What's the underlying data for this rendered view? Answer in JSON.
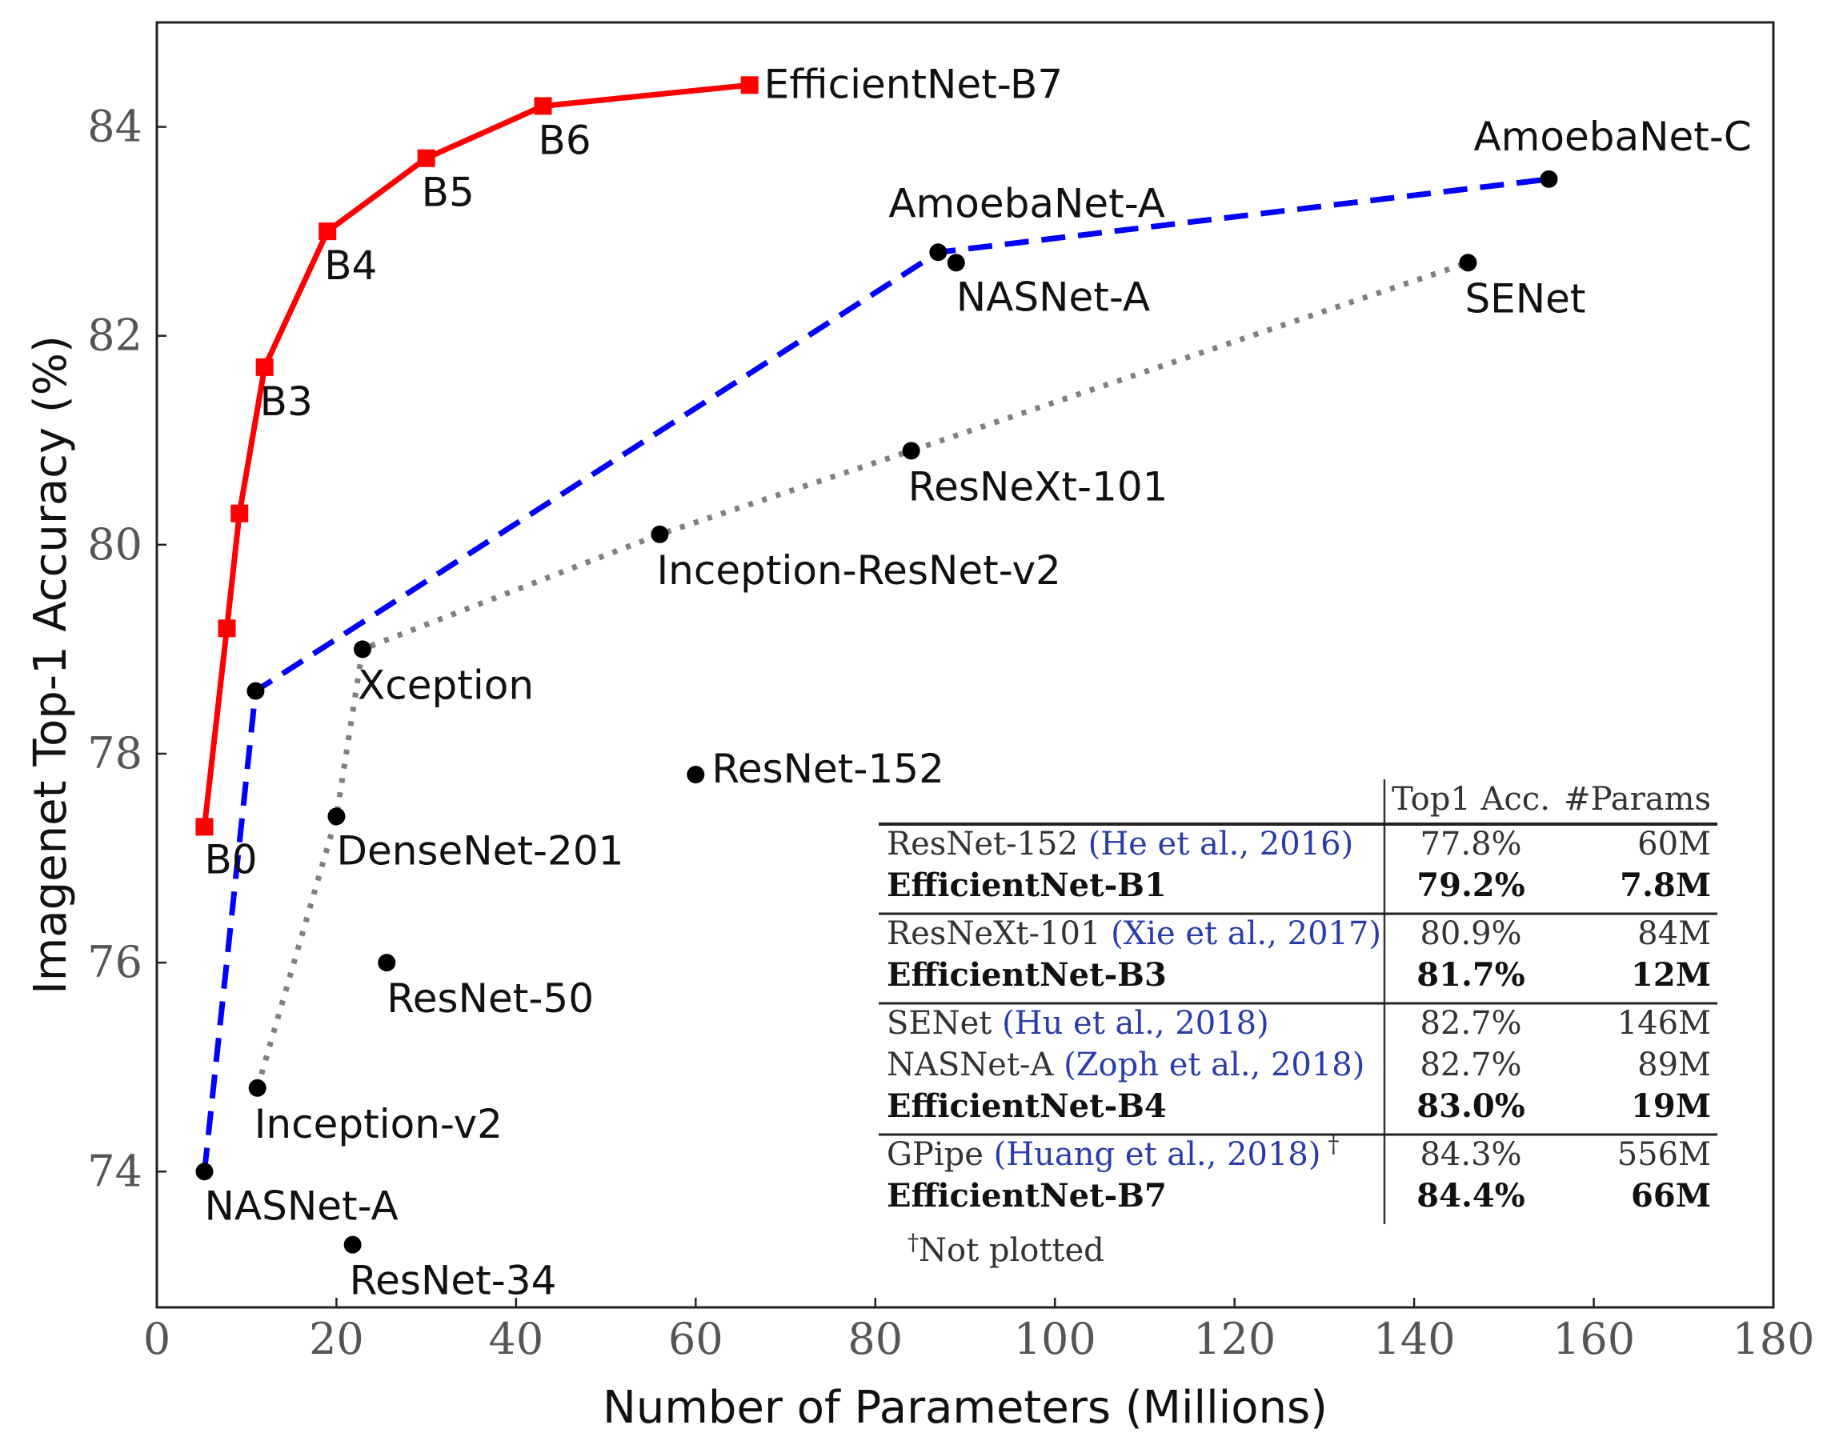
{
  "chart_data": {
    "type": "scatter",
    "xlabel": "Number of Parameters (Millions)",
    "ylabel": "Imagenet Top-1 Accuracy (%)",
    "xlim": [
      0,
      180
    ],
    "ylim": [
      72.7,
      85.0
    ],
    "xticks": [
      0,
      20,
      40,
      60,
      80,
      100,
      120,
      140,
      160,
      180
    ],
    "yticks": [
      74,
      76,
      78,
      80,
      82,
      84
    ],
    "grid": false,
    "series": [
      {
        "style": "solid-red-squares",
        "color": "#ff0000",
        "points": [
          {
            "x": 5.3,
            "y": 77.3,
            "label": "B0"
          },
          {
            "x": 7.8,
            "y": 79.2,
            "label": ""
          },
          {
            "x": 9.2,
            "y": 80.3,
            "label": ""
          },
          {
            "x": 12,
            "y": 81.7,
            "label": "B3"
          },
          {
            "x": 19,
            "y": 83.0,
            "label": "B4"
          },
          {
            "x": 30,
            "y": 83.7,
            "label": "B5"
          },
          {
            "x": 43,
            "y": 84.2,
            "label": "B6"
          },
          {
            "x": 66,
            "y": 84.4,
            "label": "EfficientNet-B7"
          }
        ]
      },
      {
        "style": "dashed-blue-dots",
        "color": "#0000ff",
        "points": [
          {
            "x": 5.3,
            "y": 74.0,
            "label": "NASNet-A"
          },
          {
            "x": 11,
            "y": 78.6,
            "label": ""
          },
          {
            "x": 87,
            "y": 82.8,
            "label": "AmoebaNet-A"
          },
          {
            "x": 155,
            "y": 83.5,
            "label": "AmoebaNet-C"
          }
        ]
      },
      {
        "style": "dotted-gray-dots",
        "color": "#808080",
        "points": [
          {
            "x": 11.2,
            "y": 74.8,
            "label": "Inception-v2"
          },
          {
            "x": 20,
            "y": 77.4,
            "label": "DenseNet-201"
          },
          {
            "x": 22.9,
            "y": 79.0,
            "label": "Xception"
          },
          {
            "x": 56,
            "y": 80.1,
            "label": "Inception-ResNet-v2"
          },
          {
            "x": 84,
            "y": 80.9,
            "label": "ResNeXt-101"
          },
          {
            "x": 146,
            "y": 82.7,
            "label": "SENet"
          }
        ]
      },
      {
        "style": "isolated-black-dots",
        "color": "#000000",
        "points": [
          {
            "x": 89,
            "y": 82.7,
            "label": "NASNet-A"
          },
          {
            "x": 60,
            "y": 77.8,
            "label": "ResNet-152"
          },
          {
            "x": 25.6,
            "y": 76.0,
            "label": "ResNet-50"
          },
          {
            "x": 21.8,
            "y": 73.3,
            "label": "ResNet-34"
          }
        ]
      }
    ],
    "inset_table": {
      "header": {
        "acc": "Top1 Acc.",
        "params": "#Params"
      },
      "groups": [
        [
          {
            "model": "ResNet-152",
            "cite": "(He et al., 2016)",
            "acc": "77.8%",
            "params": "60M",
            "bold": false
          },
          {
            "model": "EfficientNet-B1",
            "cite": "",
            "acc": "79.2%",
            "params": "7.8M",
            "bold": true
          }
        ],
        [
          {
            "model": "ResNeXt-101",
            "cite": "(Xie et al., 2017)",
            "acc": "80.9%",
            "params": "84M",
            "bold": false
          },
          {
            "model": "EfficientNet-B3",
            "cite": "",
            "acc": "81.7%",
            "params": "12M",
            "bold": true
          }
        ],
        [
          {
            "model": "SENet",
            "cite": "(Hu et al., 2018)",
            "acc": "82.7%",
            "params": "146M",
            "bold": false
          },
          {
            "model": "NASNet-A",
            "cite": "(Zoph et al., 2018)",
            "acc": "82.7%",
            "params": "89M",
            "bold": false
          },
          {
            "model": "EfficientNet-B4",
            "cite": "",
            "acc": "83.0%",
            "params": "19M",
            "bold": true
          }
        ],
        [
          {
            "model": "GPipe",
            "cite": "(Huang et al., 2018)",
            "dagger": "†",
            "acc": "84.3%",
            "params": "556M",
            "bold": false
          },
          {
            "model": "EfficientNet-B7",
            "cite": "",
            "acc": "84.4%",
            "params": "66M",
            "bold": true
          }
        ]
      ],
      "footnote_mark": "†",
      "footnote": "Not plotted"
    }
  }
}
